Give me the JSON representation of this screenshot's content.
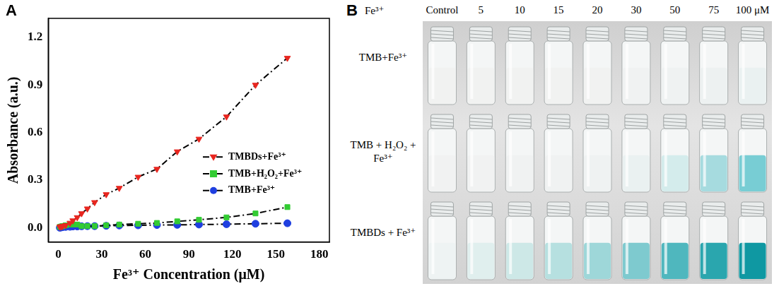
{
  "chart_data": {
    "type": "scatter",
    "panel_letter": "A",
    "x_label": "Fe³⁺ Concentration (μM)",
    "y_label": "Absorbance (a.u.)",
    "x": [
      1,
      2,
      3,
      5,
      8,
      10,
      13,
      16,
      20,
      25,
      33,
      42,
      55,
      68,
      82,
      97,
      116,
      136,
      158
    ],
    "series": [
      {
        "name": "TMBDs+Fe³⁺",
        "color": "#e8261f",
        "marker": "triangle-down",
        "line_style": "dashdot",
        "values": [
          0.005,
          0.008,
          0.01,
          0.015,
          0.03,
          0.045,
          0.065,
          0.09,
          0.12,
          0.16,
          0.21,
          0.25,
          0.32,
          0.37,
          0.48,
          0.56,
          0.7,
          0.9,
          1.07
        ]
      },
      {
        "name": "TMB+H₂O₂+Fe³⁺",
        "color": "#33cc33",
        "marker": "square",
        "line_style": "dashdot",
        "values": [
          0.005,
          0.008,
          0.01,
          0.015,
          0.02,
          0.02,
          0.02,
          0.01,
          0.01,
          0.01,
          0.015,
          0.02,
          0.025,
          0.03,
          0.04,
          0.05,
          0.065,
          0.09,
          0.13
        ]
      },
      {
        "name": "TMB+Fe³⁺",
        "color": "#1f3fe0",
        "marker": "circle",
        "line_style": "dashdot",
        "values": [
          0,
          0.002,
          0.004,
          0.005,
          0.006,
          0.008,
          0.008,
          0.009,
          0.01,
          0.01,
          0.012,
          0.014,
          0.015,
          0.017,
          0.018,
          0.02,
          0.022,
          0.025,
          0.028
        ]
      }
    ],
    "xlim": [
      -7,
      187
    ],
    "xticks": [
      0,
      30,
      60,
      90,
      120,
      150,
      180
    ],
    "ylim": [
      -0.09,
      1.32
    ],
    "yticks": [
      {
        "value": 0,
        "label": "0.0"
      },
      {
        "value": 0.3,
        "label": "0.3"
      },
      {
        "value": 0.6,
        "label": "0.6"
      },
      {
        "value": 0.9,
        "label": "0.9"
      },
      {
        "value": 1.2,
        "label": "1.2"
      }
    ],
    "grid": false,
    "legend": "right"
  },
  "panel_b": {
    "letter": "B",
    "header_label": "Fe³⁺",
    "columns": [
      "Control",
      "5",
      "10",
      "15",
      "20",
      "30",
      "50",
      "75",
      "100 μM"
    ],
    "rows": [
      {
        "label": "TMB+Fe³⁺",
        "colors": [
          "#f1f2f1",
          "#f1f2f1",
          "#f1f2f1",
          "#f1f2f1",
          "#f1f2f1",
          "#f0f2f2",
          "#eff2f2",
          "#edf1f1",
          "#eaf1f1"
        ]
      },
      {
        "label": "TMB + H₂O₂ + Fe³⁺",
        "colors": [
          "#f1f2f2",
          "#f1f2f2",
          "#f0f2f2",
          "#f0f2f2",
          "#eff2f2",
          "#eaf1f1",
          "#d4ecec",
          "#a6dbdf",
          "#78cdd4"
        ]
      },
      {
        "label": "TMBDs + Fe³⁺",
        "colors": [
          "#eef3f3",
          "#e0efee",
          "#cde8e7",
          "#b6e0e0",
          "#9ed7d9",
          "#7ecacf",
          "#4fb7be",
          "#2aa6ae",
          "#0f98a2"
        ]
      }
    ]
  }
}
